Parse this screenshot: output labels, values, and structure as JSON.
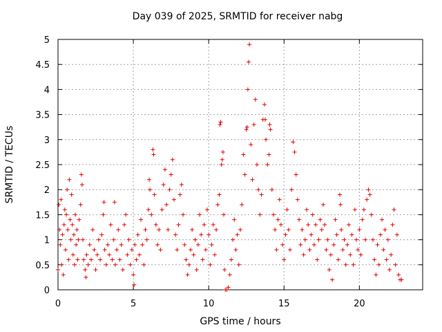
{
  "chart_data": {
    "type": "scatter",
    "title": "Day 039 of 2025, SRMTID for receiver nabg",
    "xlabel": "GPS time / hours",
    "ylabel": "SRMTID / TECUs",
    "xlim": [
      0,
      24.2
    ],
    "ylim": [
      0,
      5
    ],
    "xticks": [
      0,
      5,
      10,
      15,
      20
    ],
    "yticks": [
      0,
      0.5,
      1,
      1.5,
      2,
      2.5,
      3,
      3.5,
      4,
      4.5,
      5
    ],
    "xtick_labels": [
      "0",
      "5",
      "10",
      "15",
      "20"
    ],
    "ytick_labels": [
      "0",
      "0.5",
      "1",
      "1.5",
      "2",
      "2.5",
      "3",
      "3.5",
      "4",
      "4.5",
      "5"
    ],
    "grid": true,
    "marker": "+",
    "color": "#e00000",
    "series": [
      {
        "name": "SRMTID",
        "points": [
          [
            0.0,
            0.4
          ],
          [
            0.05,
            1.7
          ],
          [
            0.1,
            1.2
          ],
          [
            0.15,
            0.9
          ],
          [
            0.2,
            1.8
          ],
          [
            0.25,
            0.5
          ],
          [
            0.3,
            1.1
          ],
          [
            0.35,
            0.3
          ],
          [
            0.4,
            1.3
          ],
          [
            0.45,
            1.6
          ],
          [
            0.5,
            0.8
          ],
          [
            0.55,
            1.5
          ],
          [
            0.6,
            2.0
          ],
          [
            0.65,
            1.2
          ],
          [
            0.7,
            0.6
          ],
          [
            0.75,
            2.2
          ],
          [
            0.8,
            1.4
          ],
          [
            0.85,
            1.0
          ],
          [
            0.9,
            1.9
          ],
          [
            0.95,
            1.3
          ],
          [
            1.0,
            0.7
          ],
          [
            1.05,
            1.1
          ],
          [
            1.1,
            0.5
          ],
          [
            1.15,
            1.5
          ],
          [
            1.2,
            0.9
          ],
          [
            1.25,
            1.2
          ],
          [
            1.3,
            0.6
          ],
          [
            1.35,
            1.0
          ],
          [
            1.4,
            1.4
          ],
          [
            1.5,
            1.7
          ],
          [
            1.55,
            2.3
          ],
          [
            1.6,
            2.1
          ],
          [
            1.65,
            1.0
          ],
          [
            1.7,
            0.6
          ],
          [
            1.8,
            0.4
          ],
          [
            1.85,
            0.25
          ],
          [
            1.9,
            0.7
          ],
          [
            2.0,
            0.5
          ],
          [
            2.1,
            0.9
          ],
          [
            2.2,
            0.6
          ],
          [
            2.3,
            1.2
          ],
          [
            2.4,
            0.8
          ],
          [
            2.5,
            0.4
          ],
          [
            2.6,
            0.7
          ],
          [
            2.7,
            1.0
          ],
          [
            2.8,
            0.6
          ],
          [
            2.9,
            1.1
          ],
          [
            3.0,
            1.5
          ],
          [
            3.05,
            1.75
          ],
          [
            3.1,
            0.8
          ],
          [
            3.2,
            0.5
          ],
          [
            3.3,
            0.9
          ],
          [
            3.4,
            0.7
          ],
          [
            3.5,
            1.3
          ],
          [
            3.6,
            0.6
          ],
          [
            3.7,
            1.0
          ],
          [
            3.75,
            1.75
          ],
          [
            3.8,
            0.5
          ],
          [
            3.9,
            0.8
          ],
          [
            4.0,
            1.2
          ],
          [
            4.1,
            0.6
          ],
          [
            4.2,
            0.9
          ],
          [
            4.3,
            0.4
          ],
          [
            4.4,
            1.3
          ],
          [
            4.5,
            1.5
          ],
          [
            4.6,
            0.7
          ],
          [
            4.7,
            1.0
          ],
          [
            4.8,
            0.5
          ],
          [
            4.9,
            0.8
          ],
          [
            5.0,
            0.3
          ],
          [
            5.05,
            0.1
          ],
          [
            5.1,
            0.9
          ],
          [
            5.2,
            0.6
          ],
          [
            5.3,
            1.1
          ],
          [
            5.4,
            0.7
          ],
          [
            5.5,
            1.4
          ],
          [
            5.6,
            0.9
          ],
          [
            5.7,
            0.5
          ],
          [
            5.8,
            1.2
          ],
          [
            5.9,
            1.0
          ],
          [
            6.0,
            1.6
          ],
          [
            6.05,
            2.2
          ],
          [
            6.1,
            2.0
          ],
          [
            6.2,
            1.5
          ],
          [
            6.3,
            2.8
          ],
          [
            6.35,
            2.7
          ],
          [
            6.4,
            1.9
          ],
          [
            6.5,
            1.3
          ],
          [
            6.6,
            0.9
          ],
          [
            6.7,
            1.2
          ],
          [
            6.8,
            0.8
          ],
          [
            6.9,
            1.6
          ],
          [
            7.0,
            2.1
          ],
          [
            7.1,
            2.4
          ],
          [
            7.2,
            1.7
          ],
          [
            7.3,
            1.2
          ],
          [
            7.4,
            2.0
          ],
          [
            7.5,
            2.3
          ],
          [
            7.6,
            2.6
          ],
          [
            7.7,
            1.8
          ],
          [
            7.8,
            1.1
          ],
          [
            7.9,
            0.8
          ],
          [
            8.0,
            1.3
          ],
          [
            8.1,
            1.9
          ],
          [
            8.2,
            2.1
          ],
          [
            8.3,
            1.5
          ],
          [
            8.4,
            0.9
          ],
          [
            8.5,
            0.6
          ],
          [
            8.6,
            0.3
          ],
          [
            8.7,
            0.5
          ],
          [
            8.8,
            0.8
          ],
          [
            8.9,
            1.2
          ],
          [
            9.0,
            0.7
          ],
          [
            9.1,
            1.0
          ],
          [
            9.2,
            0.4
          ],
          [
            9.3,
            0.9
          ],
          [
            9.4,
            1.5
          ],
          [
            9.5,
            1.1
          ],
          [
            9.6,
            0.6
          ],
          [
            9.7,
            1.3
          ],
          [
            9.8,
            0.8
          ],
          [
            9.9,
            1.6
          ],
          [
            10.0,
            1.1
          ],
          [
            10.1,
            0.5
          ],
          [
            10.2,
            0.9
          ],
          [
            10.3,
            1.3
          ],
          [
            10.4,
            0.7
          ],
          [
            10.5,
            1.2
          ],
          [
            10.6,
            1.7
          ],
          [
            10.7,
            1.9
          ],
          [
            10.75,
            3.3
          ],
          [
            10.8,
            3.35
          ],
          [
            10.85,
            2.5
          ],
          [
            10.9,
            2.6
          ],
          [
            10.95,
            2.75
          ],
          [
            11.0,
            1.5
          ],
          [
            11.05,
            0.4
          ],
          [
            11.1,
            0.0
          ],
          [
            11.2,
            0.0
          ],
          [
            11.3,
            0.05
          ],
          [
            11.4,
            0.3
          ],
          [
            11.5,
            0.6
          ],
          [
            11.6,
            1.0
          ],
          [
            11.7,
            1.4
          ],
          [
            11.8,
            0.8
          ],
          [
            11.9,
            1.1
          ],
          [
            12.0,
            0.5
          ],
          [
            12.1,
            1.2
          ],
          [
            12.2,
            1.7
          ],
          [
            12.3,
            2.7
          ],
          [
            12.4,
            2.3
          ],
          [
            12.5,
            3.2
          ],
          [
            12.55,
            3.25
          ],
          [
            12.6,
            4.0
          ],
          [
            12.65,
            4.55
          ],
          [
            12.7,
            4.9
          ],
          [
            12.8,
            2.9
          ],
          [
            12.9,
            2.2
          ],
          [
            13.0,
            3.3
          ],
          [
            13.1,
            3.8
          ],
          [
            13.2,
            2.5
          ],
          [
            13.3,
            2.0
          ],
          [
            13.4,
            1.5
          ],
          [
            13.5,
            1.9
          ],
          [
            13.6,
            3.4
          ],
          [
            13.7,
            3.7
          ],
          [
            13.75,
            3.4
          ],
          [
            13.8,
            3.0
          ],
          [
            13.9,
            2.5
          ],
          [
            14.0,
            2.7
          ],
          [
            14.05,
            3.3
          ],
          [
            14.1,
            3.2
          ],
          [
            14.2,
            2.0
          ],
          [
            14.3,
            1.5
          ],
          [
            14.4,
            1.2
          ],
          [
            14.5,
            0.8
          ],
          [
            14.6,
            1.4
          ],
          [
            14.7,
            1.8
          ],
          [
            14.8,
            1.3
          ],
          [
            14.9,
            0.9
          ],
          [
            15.0,
            0.6
          ],
          [
            15.1,
            1.1
          ],
          [
            15.2,
            1.6
          ],
          [
            15.3,
            1.2
          ],
          [
            15.4,
            0.8
          ],
          [
            15.5,
            2.0
          ],
          [
            15.6,
            2.95
          ],
          [
            15.7,
            2.75
          ],
          [
            15.8,
            2.3
          ],
          [
            15.9,
            1.8
          ],
          [
            16.0,
            1.4
          ],
          [
            16.1,
            0.9
          ],
          [
            16.2,
            1.2
          ],
          [
            16.3,
            0.7
          ],
          [
            16.4,
            1.0
          ],
          [
            16.5,
            1.6
          ],
          [
            16.6,
            1.3
          ],
          [
            16.7,
            0.8
          ],
          [
            16.8,
            1.1
          ],
          [
            16.9,
            1.5
          ],
          [
            17.0,
            0.9
          ],
          [
            17.1,
            1.3
          ],
          [
            17.2,
            0.6
          ],
          [
            17.3,
            1.0
          ],
          [
            17.4,
            1.4
          ],
          [
            17.5,
            1.2
          ],
          [
            17.6,
            1.7
          ],
          [
            17.7,
            1.3
          ],
          [
            17.8,
            0.8
          ],
          [
            17.9,
            1.0
          ],
          [
            18.0,
            0.4
          ],
          [
            18.1,
            0.7
          ],
          [
            18.2,
            0.2
          ],
          [
            18.3,
            0.9
          ],
          [
            18.4,
            1.4
          ],
          [
            18.5,
            1.1
          ],
          [
            18.6,
            0.6
          ],
          [
            18.7,
            1.9
          ],
          [
            18.75,
            1.7
          ],
          [
            18.8,
            1.2
          ],
          [
            18.9,
            0.8
          ],
          [
            19.0,
            1.0
          ],
          [
            19.1,
            0.5
          ],
          [
            19.2,
            0.9
          ],
          [
            19.3,
            1.3
          ],
          [
            19.4,
            0.7
          ],
          [
            19.5,
            1.1
          ],
          [
            19.6,
            0.5
          ],
          [
            19.7,
            1.6
          ],
          [
            19.8,
            1.0
          ],
          [
            19.9,
            0.8
          ],
          [
            20.0,
            1.2
          ],
          [
            20.1,
            0.7
          ],
          [
            20.2,
            1.4
          ],
          [
            20.3,
            1.6
          ],
          [
            20.4,
            1.0
          ],
          [
            20.5,
            1.8
          ],
          [
            20.6,
            2.0
          ],
          [
            20.7,
            1.9
          ],
          [
            20.8,
            1.5
          ],
          [
            20.9,
            1.0
          ],
          [
            21.0,
            0.6
          ],
          [
            21.1,
            0.3
          ],
          [
            21.2,
            0.9
          ],
          [
            21.3,
            0.5
          ],
          [
            21.4,
            1.1
          ],
          [
            21.5,
            1.4
          ],
          [
            21.6,
            0.8
          ],
          [
            21.7,
            1.2
          ],
          [
            21.8,
            0.6
          ],
          [
            21.9,
            1.0
          ],
          [
            22.0,
            0.4
          ],
          [
            22.1,
            0.7
          ],
          [
            22.2,
            1.3
          ],
          [
            22.3,
            1.6
          ],
          [
            22.4,
            0.5
          ],
          [
            22.5,
            1.1
          ],
          [
            22.6,
            0.3
          ],
          [
            22.7,
            0.2
          ],
          [
            22.8,
            0.2
          ]
        ]
      }
    ]
  }
}
